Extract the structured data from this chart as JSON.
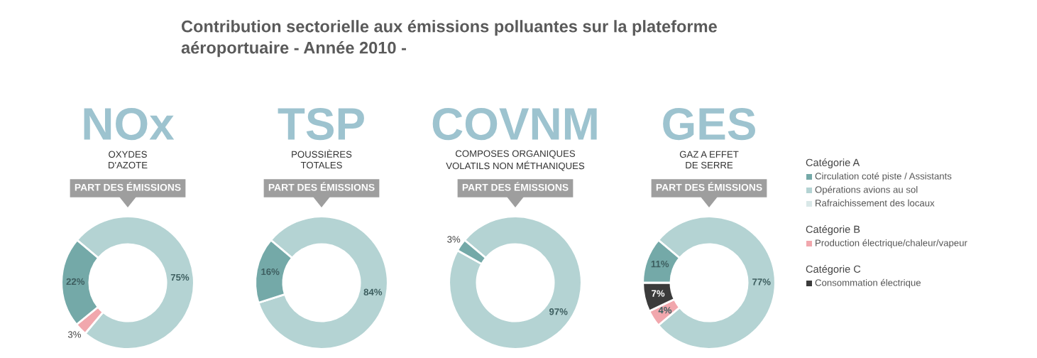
{
  "chart_data": [
    {
      "type": "other",
      "title": "Contribution sectorielle aux émissions polluantes sur la plateforme\naéroportuaire - Année 2010 -"
    },
    {
      "type": "donut",
      "title": "NOx",
      "subtitle": "OXYDES\nD'AZOTE",
      "annotations": [
        "PART DES ÉMISSIONS"
      ],
      "categories": [
        null,
        null,
        null
      ],
      "values": [
        75,
        3,
        22
      ],
      "colors": [
        "#b4d3d3",
        "#f1a7ad",
        "#74a9a8"
      ],
      "value_labels": [
        "75%",
        "3%",
        "22%"
      ]
    },
    {
      "type": "donut",
      "title": "TSP",
      "subtitle": "POUSSIÈRES\nTOTALES",
      "annotations": [
        "PART DES ÉMISSIONS"
      ],
      "categories": [
        null,
        null
      ],
      "values": [
        84,
        16
      ],
      "colors": [
        "#b4d3d3",
        "#74a9a8"
      ],
      "value_labels": [
        "84%",
        "16%"
      ]
    },
    {
      "type": "donut",
      "title": "COVNM",
      "subtitle": "COMPOSES ORGANIQUES\nVOLATILS NON MÉTHANIQUES",
      "annotations": [
        "PART DES ÉMISSIONS"
      ],
      "categories": [
        null,
        null
      ],
      "values": [
        97,
        3
      ],
      "colors": [
        "#b4d3d3",
        "#74a9a8"
      ],
      "value_labels": [
        "97%",
        "3%"
      ]
    },
    {
      "type": "donut",
      "title": "GES",
      "subtitle": "GAZ A EFFET\nDE SERRE",
      "annotations": [
        "PART DES ÉMISSIONS"
      ],
      "categories": [
        null,
        null,
        null,
        null
      ],
      "values": [
        77,
        4,
        7,
        11
      ],
      "colors": [
        "#b4d3d3",
        "#f1a7ad",
        "#3b3b3b",
        "#74a9a8"
      ],
      "value_labels": [
        "77%",
        "4%",
        "7%",
        "11%"
      ]
    },
    {
      "type": "other",
      "categories": [
        "Catégorie A",
        "Circulation coté piste / Assistants",
        "Opérations avions au sol",
        "Rafraichissement des locaux",
        "Catégorie B",
        "Production électrique/chaleur/vapeur",
        "Catégorie C",
        "Consommation électrique"
      ],
      "colors": [
        null,
        "#74a9a8",
        "#b4d3d3",
        "#d9e8e8",
        null,
        "#f1a7ad",
        null,
        "#3b3b3b"
      ]
    }
  ]
}
